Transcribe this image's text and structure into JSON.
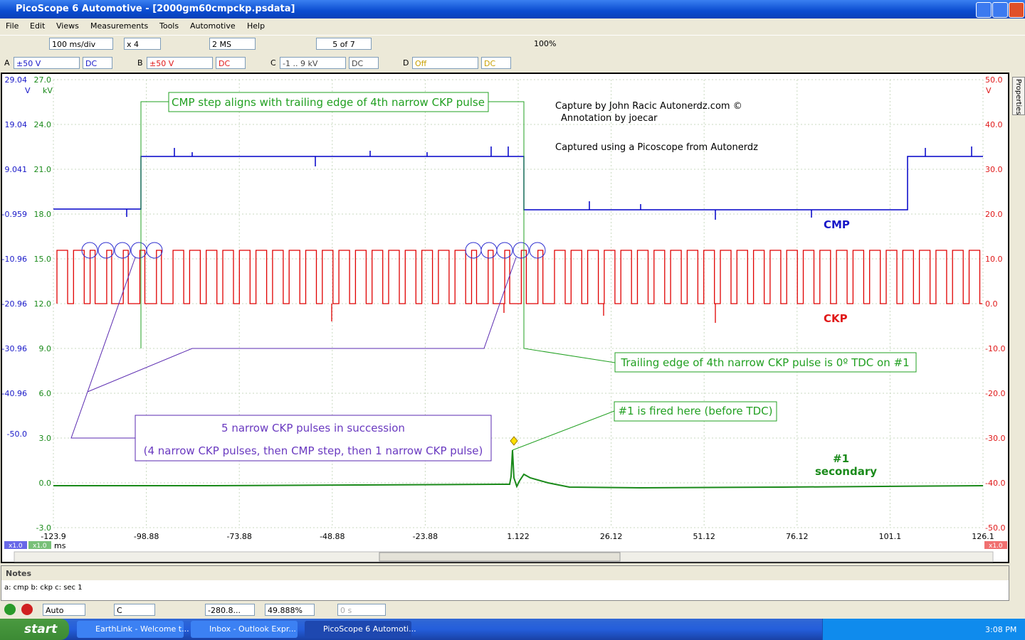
{
  "window": {
    "title": "PicoScope 6 Automotive - [2000gm60cmpckp.psdata]"
  },
  "menu": [
    "File",
    "Edit",
    "Views",
    "Measurements",
    "Tools",
    "Automotive",
    "Help"
  ],
  "toolbar": {
    "timebase": "100 ms/div",
    "zoom": "x 4",
    "samples": "2 MS",
    "buffer": "5 of 7",
    "zoom_pct": "100%"
  },
  "channels": [
    {
      "letter": "A",
      "range": "±50 V",
      "coupling": "DC"
    },
    {
      "letter": "B",
      "range": "±50 V",
      "coupling": "DC"
    },
    {
      "letter": "C",
      "range": "-1 .. 9 kV",
      "coupling": "DC"
    },
    {
      "letter": "D",
      "range": "Off",
      "coupling": "DC"
    }
  ],
  "axes": {
    "a_unit": "V",
    "b_unit": "kV",
    "right_unit": "V",
    "x_unit": "ms",
    "a_ticks": [
      "29.04",
      "19.04",
      "9.041",
      "-0.959",
      "-10.96",
      "-20.96",
      "-30.96",
      "-40.96",
      "-50.0"
    ],
    "b_ticks": [
      "27.0",
      "24.0",
      "21.0",
      "18.0",
      "15.0",
      "12.0",
      "9.0",
      "6.0",
      "3.0",
      "0.0",
      "-3.0"
    ],
    "right_ticks": [
      "50.0",
      "40.0",
      "30.0",
      "20.0",
      "10.0",
      "0.0",
      "-10.0",
      "-20.0",
      "-30.0",
      "-40.0",
      "-50.0"
    ],
    "x_ticks": [
      "-123.9",
      "-98.88",
      "-73.88",
      "-48.88",
      "-23.88",
      "1.122",
      "26.12",
      "51.12",
      "76.12",
      "101.1",
      "126.1"
    ],
    "scale_a": "x1.0",
    "scale_b": "x1.0",
    "scale_right": "x1.0"
  },
  "annotations": {
    "cmp_step": "CMP step aligns with trailing edge of 4th narrow CKP pulse",
    "credit1": "Capture by John Racic Autonerdz.com ©",
    "credit2": "Annotation by joecar",
    "credit3": "Captured using a Picoscope from Autonerdz",
    "trailing": "Trailing edge of 4th narrow CKP pulse is 0º TDC on #1",
    "fired": "#1 is fired here (before TDC)",
    "narrow1": "5 narrow CKP pulses in succession",
    "narrow2": "(4 narrow CKP pulses, then CMP step, then 1 narrow CKP pulse)"
  },
  "trace_labels": {
    "cmp": "CMP",
    "ckp": "CKP",
    "sec1": "#1",
    "sec2": "secondary"
  },
  "side_tab": "Properties",
  "notes": {
    "title": "Notes",
    "text": "a: cmp b: ckp c: sec 1"
  },
  "bottom_toolbar": {
    "trigger": "Auto",
    "channel": "C",
    "pre": "-280.8...",
    "post": "49.888%",
    "delay": "0 s"
  },
  "taskbar": {
    "start": "start",
    "items": [
      "EarthLink - Welcome t...",
      "Inbox - Outlook Expr...",
      "PicoScope 6 Automoti..."
    ],
    "clock": "3:08 PM"
  }
}
